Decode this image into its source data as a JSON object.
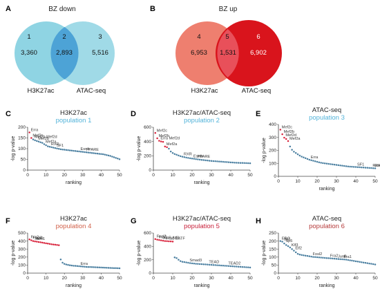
{
  "colors": {
    "light_blue": "#8fd4e3",
    "overlap_blue": "#4da3d6",
    "light_red": "#ee7f6f",
    "dark_red": "#d9141c",
    "overlap_red": "#e8505a",
    "dot_blue": "#4a7fa0",
    "dot_red": "#d8213a",
    "sub_blue": "#52b3d9",
    "sub_pop4": "#d1614a",
    "sub_pop5": "#c8203a",
    "sub_pop6": "#b53a3a"
  },
  "venns": [
    {
      "panel": "A",
      "title": "BZ down",
      "left_id": "1",
      "mid_id": "2",
      "right_id": "3",
      "left_count": "3,360",
      "mid_count": "2,893",
      "right_count": "5,516",
      "left_label": "H3K27ac",
      "right_label": "ATAC-seq"
    },
    {
      "panel": "B",
      "title": "BZ up",
      "left_id": "4",
      "mid_id": "5",
      "right_id": "6",
      "left_count": "6,953",
      "mid_count": "1,531",
      "right_count": "6,902",
      "left_label": "H3K27ac",
      "right_label": "ATAC-seq"
    }
  ],
  "chart_data": [
    {
      "panel": "C",
      "type": "scatter",
      "title": "H3K27ac",
      "subtitle": "population 1",
      "xlabel": "ranking",
      "ylabel": "-log p-value",
      "xlim": [
        0,
        50
      ],
      "ylim": [
        0,
        200
      ],
      "xticks": [
        0,
        10,
        20,
        30,
        40,
        50
      ],
      "yticks": [
        0,
        50,
        100,
        150,
        200
      ],
      "values": [
        176,
        150,
        143,
        139,
        136,
        133,
        130,
        127,
        121,
        116,
        111,
        109,
        107,
        105,
        103,
        101,
        99,
        97,
        96,
        95,
        94,
        93,
        92,
        91,
        90,
        89,
        88,
        87,
        86,
        85,
        84,
        83,
        82,
        81,
        80,
        79,
        78,
        77,
        76,
        75,
        74,
        72,
        70,
        68,
        66,
        63,
        60,
        57,
        54,
        51
      ],
      "highlight": [
        1,
        2
      ],
      "annotations": [
        {
          "rank": 1,
          "text": "Erra"
        },
        {
          "rank": 2,
          "text": "Mef2c"
        },
        {
          "rank": 3,
          "text": "Mef2b Mef2d"
        },
        {
          "rank": 5,
          "text": "Mef2b"
        },
        {
          "rank": 9,
          "text": "Mef2a"
        },
        {
          "rank": 12,
          "text": "RXR"
        },
        {
          "rank": 15,
          "text": "SF1"
        },
        {
          "rank": 28,
          "text": "Esrrb"
        },
        {
          "rank": 31,
          "text": "PPARE"
        }
      ]
    },
    {
      "panel": "D",
      "type": "scatter",
      "title": "H3K27ac/ATAC-seq",
      "subtitle": "population 2",
      "xlabel": "ranking",
      "ylabel": "-log p-value",
      "xlim": [
        0,
        50
      ],
      "ylim": [
        0,
        600
      ],
      "xticks": [
        0,
        10,
        20,
        30,
        40,
        50
      ],
      "yticks": [
        0,
        200,
        400,
        600
      ],
      "values": [
        520,
        445,
        410,
        400,
        395,
        330,
        320,
        300,
        260,
        240,
        225,
        215,
        205,
        195,
        188,
        182,
        176,
        170,
        166,
        162,
        158,
        154,
        150,
        146,
        143,
        140,
        137,
        134,
        131,
        128,
        126,
        124,
        122,
        120,
        118,
        116,
        114,
        112,
        110,
        108,
        106,
        104,
        103,
        102,
        101,
        100,
        99,
        98,
        97,
        95
      ],
      "highlight": [
        1,
        2,
        3,
        4,
        5,
        6,
        7
      ],
      "annotations": [
        {
          "rank": 1,
          "text": "Mef2c"
        },
        {
          "rank": 2,
          "text": "Mef2b"
        },
        {
          "rank": 3,
          "text": "Erra Mef2d"
        },
        {
          "rank": 6,
          "text": "Mef2a"
        },
        {
          "rank": 15,
          "text": "RXR"
        },
        {
          "rank": 20,
          "text": "Esrrb"
        },
        {
          "rank": 22,
          "text": "PPARE"
        }
      ]
    },
    {
      "panel": "E",
      "type": "scatter",
      "title": "ATAC-seq",
      "subtitle": "population 3",
      "xlabel": "ranking",
      "ylabel": "-log p-value",
      "xlim": [
        0,
        50
      ],
      "ylim": [
        0,
        400
      ],
      "xticks": [
        0,
        10,
        20,
        30,
        40,
        50
      ],
      "yticks": [
        0,
        100,
        200,
        300,
        400
      ],
      "values": [
        360,
        325,
        298,
        288,
        272,
        230,
        205,
        190,
        180,
        170,
        160,
        152,
        146,
        140,
        134,
        128,
        124,
        120,
        116,
        112,
        108,
        105,
        102,
        100,
        98,
        96,
        94,
        92,
        90,
        88,
        86,
        84,
        82,
        80,
        78,
        76,
        75,
        74,
        73,
        72,
        71,
        70,
        69,
        68,
        67,
        66,
        65,
        64,
        63,
        62
      ],
      "highlight": [
        1,
        2,
        3,
        4,
        5
      ],
      "annotations": [
        {
          "rank": 1,
          "text": "Mef2c"
        },
        {
          "rank": 2,
          "text": "Mef2b"
        },
        {
          "rank": 3,
          "text": "Mef2d"
        },
        {
          "rank": 5,
          "text": "Mef2a"
        },
        {
          "rank": 16,
          "text": "Erra"
        },
        {
          "rank": 40,
          "text": "SF1"
        },
        {
          "rank": 48,
          "text": "RXR"
        },
        {
          "rank": 49,
          "text": "Esrrb"
        }
      ]
    },
    {
      "panel": "F",
      "type": "scatter",
      "title": "H3K27ac",
      "subtitle": "population 4",
      "xlabel": "ranking",
      "ylabel": "-log p-value",
      "xlim": [
        0,
        50
      ],
      "ylim": [
        0,
        500
      ],
      "xticks": [
        0,
        10,
        20,
        30,
        40,
        50
      ],
      "yticks": [
        0,
        100,
        200,
        300,
        400,
        500
      ],
      "values": [
        420,
        410,
        400,
        395,
        392,
        388,
        385,
        380,
        376,
        372,
        368,
        364,
        360,
        357,
        354,
        351,
        348,
        170,
        130,
        115,
        108,
        102,
        98,
        95,
        92,
        90,
        88,
        86,
        84,
        82,
        80,
        78,
        77,
        76,
        75,
        74,
        73,
        72,
        71,
        70,
        69,
        68,
        67,
        66,
        65,
        64,
        63,
        62,
        61,
        60
      ],
      "highlight": [
        1,
        2,
        3,
        4,
        5,
        6,
        7,
        8,
        9,
        10,
        11,
        12,
        13,
        14,
        15,
        16,
        17
      ],
      "annotations": [
        {
          "rank": 1,
          "text": "Fra2"
        },
        {
          "rank": 2,
          "text": "Fosl2"
        },
        {
          "rank": 3,
          "text": "JunB"
        },
        {
          "rank": 4,
          "text": "AP-1"
        },
        {
          "rank": 28,
          "text": "Erra"
        }
      ]
    },
    {
      "panel": "G",
      "type": "scatter",
      "title": "H3K27ac/ATAC-seq",
      "subtitle": "population 5",
      "xlabel": "ranking",
      "ylabel": "-log p-value",
      "xlim": [
        0,
        50
      ],
      "ylim": [
        0,
        600
      ],
      "xticks": [
        0,
        10,
        20,
        30,
        40,
        50
      ],
      "yticks": [
        0,
        200,
        400,
        600
      ],
      "values": [
        510,
        500,
        495,
        490,
        485,
        480,
        478,
        476,
        474,
        472,
        235,
        225,
        200,
        180,
        170,
        165,
        160,
        155,
        150,
        146,
        143,
        140,
        138,
        136,
        134,
        132,
        130,
        128,
        126,
        124,
        122,
        120,
        118,
        116,
        114,
        112,
        110,
        108,
        106,
        104,
        102,
        100,
        98,
        96,
        94,
        92,
        90,
        88,
        86,
        84
      ],
      "highlight": [
        1,
        2,
        3,
        4,
        5,
        6,
        7,
        8,
        9,
        10
      ],
      "annotations": [
        {
          "rank": 1,
          "text": "Fosl2"
        },
        {
          "rank": 2,
          "text": "Fra2"
        },
        {
          "rank": 4,
          "text": "JunB Atf3"
        },
        {
          "rank": 6,
          "text": "Fra1 BATF"
        },
        {
          "rank": 18,
          "text": "Smad3"
        },
        {
          "rank": 28,
          "text": "TEAD"
        },
        {
          "rank": 38,
          "text": "TEAD2"
        }
      ]
    },
    {
      "panel": "H",
      "type": "scatter",
      "title": "ATAC-seq",
      "subtitle": "population 6",
      "xlabel": "ranking",
      "ylabel": "-log p-value",
      "xlim": [
        0,
        50
      ],
      "ylim": [
        0,
        250
      ],
      "xticks": [
        0,
        10,
        20,
        30,
        40,
        50
      ],
      "yticks": [
        0,
        50,
        100,
        150,
        200,
        250
      ],
      "values": [
        200,
        196,
        185,
        175,
        168,
        160,
        150,
        140,
        130,
        120,
        116,
        113,
        111,
        109,
        107,
        105,
        103,
        101,
        100,
        99,
        98,
        97,
        96,
        95,
        94,
        93,
        92,
        91,
        90,
        89,
        88,
        87,
        86,
        85,
        84,
        82,
        80,
        78,
        76,
        74,
        72,
        70,
        68,
        66,
        64,
        62,
        60,
        58,
        56,
        54
      ],
      "highlight": [],
      "annotations": [
        {
          "rank": 1,
          "text": "ERG"
        },
        {
          "rank": 2,
          "text": "Sp1"
        },
        {
          "rank": 3,
          "text": "Sp5"
        },
        {
          "rank": 6,
          "text": "Klf3"
        },
        {
          "rank": 8,
          "text": "Elf2"
        },
        {
          "rank": 17,
          "text": "Fosl2"
        },
        {
          "rank": 26,
          "text": "Fra2"
        },
        {
          "rank": 30,
          "text": "JunB"
        },
        {
          "rank": 33,
          "text": "Fra1"
        }
      ]
    }
  ]
}
